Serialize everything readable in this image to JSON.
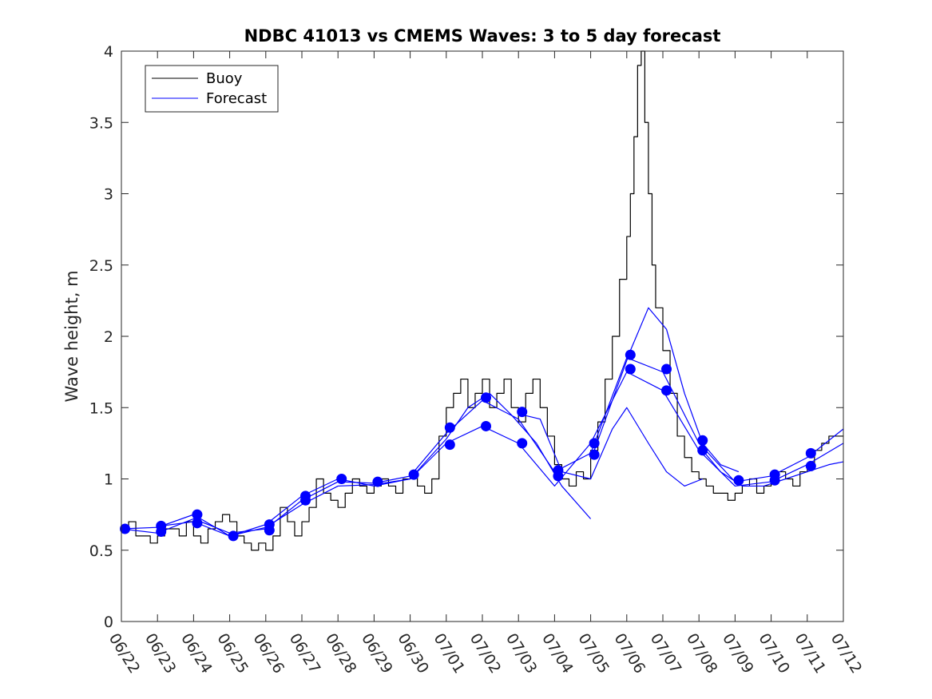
{
  "chart_data": {
    "type": "line",
    "title": "NDBC 41013 vs CMEMS Waves: 3 to 5 day forecast",
    "xlabel": "",
    "ylabel": "Wave height, m",
    "x_ticks": [
      "06/22",
      "06/23",
      "06/24",
      "06/25",
      "06/26",
      "06/27",
      "06/28",
      "06/29",
      "06/30",
      "07/01",
      "07/02",
      "07/03",
      "07/04",
      "07/05",
      "07/06",
      "07/07",
      "07/08",
      "07/09",
      "07/10",
      "07/11",
      "07/12"
    ],
    "y_ticks": [
      "0",
      "0.5",
      "1",
      "1.5",
      "2",
      "2.5",
      "3",
      "3.5",
      "4"
    ],
    "xlim": [
      0,
      20
    ],
    "ylim": [
      0,
      4
    ],
    "grid": false,
    "legend_position": "top-left",
    "colors": {
      "buoy": "#000000",
      "forecast": "#0000ff"
    },
    "series": [
      {
        "name": "Buoy",
        "style": "step",
        "x": [
          0,
          0.2,
          0.4,
          0.6,
          0.8,
          1.0,
          1.2,
          1.4,
          1.6,
          1.8,
          2.0,
          2.2,
          2.4,
          2.6,
          2.8,
          3.0,
          3.2,
          3.4,
          3.6,
          3.8,
          4.0,
          4.2,
          4.4,
          4.6,
          4.8,
          5.0,
          5.2,
          5.4,
          5.6,
          5.8,
          6.0,
          6.2,
          6.4,
          6.6,
          6.8,
          7.0,
          7.2,
          7.4,
          7.6,
          7.8,
          8.0,
          8.2,
          8.4,
          8.6,
          8.8,
          9.0,
          9.2,
          9.4,
          9.6,
          9.8,
          10.0,
          10.2,
          10.4,
          10.6,
          10.8,
          11.0,
          11.2,
          11.4,
          11.6,
          11.8,
          12.0,
          12.2,
          12.4,
          12.6,
          12.8,
          13.0,
          13.2,
          13.4,
          13.6,
          13.8,
          14.0,
          14.1,
          14.2,
          14.3,
          14.4,
          14.5,
          14.6,
          14.7,
          14.8,
          15.0,
          15.2,
          15.4,
          15.6,
          15.8,
          16.0,
          16.2,
          16.4,
          16.6,
          16.8,
          17.0,
          17.2,
          17.4,
          17.6,
          17.8,
          18.0,
          18.2,
          18.4,
          18.6,
          18.8,
          19.0,
          19.2,
          19.4,
          19.6,
          19.8,
          20.0
        ],
        "y": [
          0.65,
          0.7,
          0.6,
          0.6,
          0.55,
          0.6,
          0.65,
          0.65,
          0.6,
          0.7,
          0.6,
          0.55,
          0.65,
          0.7,
          0.75,
          0.7,
          0.6,
          0.55,
          0.5,
          0.55,
          0.5,
          0.6,
          0.8,
          0.7,
          0.6,
          0.7,
          0.8,
          1.0,
          0.9,
          0.85,
          0.8,
          0.9,
          1.0,
          0.95,
          0.9,
          0.95,
          1.0,
          0.95,
          0.9,
          1.0,
          1.05,
          0.95,
          0.9,
          1.0,
          1.3,
          1.5,
          1.6,
          1.7,
          1.5,
          1.6,
          1.7,
          1.5,
          1.6,
          1.7,
          1.5,
          1.4,
          1.6,
          1.7,
          1.5,
          1.3,
          1.1,
          1.0,
          0.95,
          1.05,
          1.0,
          1.2,
          1.4,
          1.7,
          2.0,
          2.4,
          2.7,
          3.0,
          3.4,
          3.9,
          4.0,
          3.5,
          3.0,
          2.5,
          2.2,
          1.9,
          1.6,
          1.3,
          1.15,
          1.05,
          1.0,
          0.95,
          0.9,
          0.9,
          0.85,
          0.9,
          0.95,
          1.0,
          0.9,
          0.95,
          1.0,
          1.05,
          1.0,
          0.95,
          1.05,
          1.1,
          1.2,
          1.25,
          1.3,
          1.3,
          1.3
        ]
      },
      {
        "name": "Forecast",
        "x": [
          0,
          1,
          2,
          3,
          4,
          5,
          6,
          7,
          8,
          9,
          10,
          11,
          12,
          13,
          14,
          15,
          16,
          17,
          18,
          19,
          20
        ],
        "y": [
          0.65,
          0.62,
          0.72,
          0.62,
          0.65,
          0.85,
          0.98,
          0.97,
          1.02,
          1.32,
          1.55,
          1.42,
          1.05,
          1.18,
          1.85,
          1.75,
          1.25,
          0.98,
          1.02,
          1.15,
          1.35
        ]
      },
      {
        "name": "",
        "x": [
          0,
          1,
          2,
          3,
          4,
          5,
          6,
          7,
          8,
          9,
          10,
          11,
          12,
          13,
          14,
          15,
          16,
          17,
          18,
          19,
          20
        ],
        "y": [
          0.65,
          0.66,
          0.75,
          0.6,
          0.68,
          0.88,
          1.0,
          0.95,
          1.0,
          1.25,
          1.37,
          1.25,
          0.95,
          1.25,
          1.75,
          1.62,
          1.2,
          0.95,
          0.98,
          1.1,
          1.25
        ]
      },
      {
        "name": "",
        "x": [
          1.1,
          2.0,
          3.0,
          4.0,
          5.0,
          6.0,
          7.0,
          8.0,
          9.0,
          9.6,
          10.2,
          10.8,
          11.5,
          12.2,
          13.0
        ],
        "y": [
          0.67,
          0.7,
          0.6,
          0.66,
          0.82,
          0.95,
          0.96,
          1.0,
          1.28,
          1.5,
          1.6,
          1.45,
          1.25,
          0.95,
          0.72
        ]
      },
      {
        "name": "",
        "x": [
          11.1,
          11.6,
          12.2,
          13.0,
          13.6,
          14.0,
          14.6,
          15.1,
          15.6,
          16.1
        ],
        "y": [
          1.45,
          1.42,
          1.05,
          1.0,
          1.35,
          1.5,
          1.25,
          1.05,
          0.95,
          1.0
        ]
      },
      {
        "name": "",
        "x": [
          13.1,
          13.6,
          14.1,
          14.6,
          15.1,
          15.6,
          16.1,
          16.6,
          17.1
        ],
        "y": [
          1.2,
          1.55,
          1.9,
          2.2,
          2.05,
          1.6,
          1.25,
          1.1,
          1.05
        ]
      },
      {
        "name": "",
        "x": [
          16.1,
          16.6,
          17.2,
          17.8,
          18.4,
          19.0,
          19.6,
          20.0
        ],
        "y": [
          1.2,
          1.05,
          0.95,
          0.95,
          1.0,
          1.05,
          1.1,
          1.12
        ]
      }
    ],
    "markers": {
      "x": [
        0.1,
        1.1,
        1.1,
        2.1,
        2.1,
        3.1,
        4.1,
        4.1,
        5.1,
        5.1,
        6.1,
        7.1,
        8.1,
        9.1,
        9.1,
        10.1,
        10.1,
        11.1,
        11.1,
        12.1,
        12.1,
        13.1,
        13.1,
        14.1,
        14.1,
        15.1,
        15.1,
        16.1,
        16.1,
        17.1,
        18.1,
        18.1,
        19.1,
        19.1
      ],
      "y": [
        0.65,
        0.63,
        0.67,
        0.69,
        0.75,
        0.6,
        0.64,
        0.68,
        0.85,
        0.88,
        1.0,
        0.98,
        1.03,
        1.24,
        1.36,
        1.37,
        1.57,
        1.25,
        1.47,
        1.02,
        1.06,
        1.17,
        1.25,
        1.77,
        1.87,
        1.62,
        1.77,
        1.2,
        1.27,
        0.99,
        0.99,
        1.03,
        1.09,
        1.18
      ]
    },
    "legend": [
      "Buoy",
      "Forecast"
    ]
  }
}
